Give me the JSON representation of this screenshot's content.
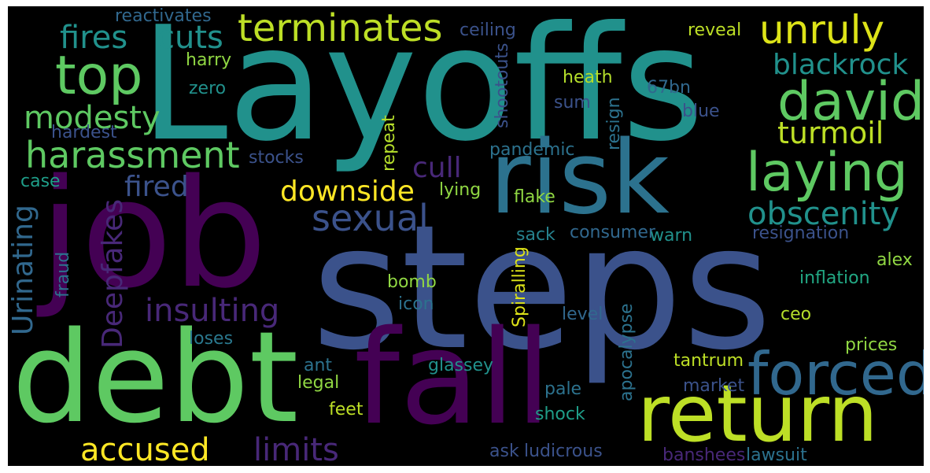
{
  "words": [
    {
      "text": "Layoffs",
      "color": "#21918c",
      "orientation": "horizontal"
    },
    {
      "text": "steps",
      "color": "#3b528b",
      "orientation": "horizontal"
    },
    {
      "text": "job",
      "color": "#440154",
      "orientation": "horizontal"
    },
    {
      "text": "debt",
      "color": "#5ec962",
      "orientation": "horizontal"
    },
    {
      "text": "fall",
      "color": "#440154",
      "orientation": "horizontal"
    },
    {
      "text": "risk",
      "color": "#2c728e",
      "orientation": "horizontal"
    },
    {
      "text": "return",
      "color": "#bddf26",
      "orientation": "horizontal"
    },
    {
      "text": "forced",
      "color": "#31688e",
      "orientation": "horizontal"
    },
    {
      "text": "top",
      "color": "#5ec962",
      "orientation": "horizontal"
    },
    {
      "text": "david",
      "color": "#5ec962",
      "orientation": "horizontal"
    },
    {
      "text": "laying",
      "color": "#5ec962",
      "orientation": "horizontal"
    },
    {
      "text": "terminates",
      "color": "#bddf26",
      "orientation": "horizontal"
    },
    {
      "text": "unruly",
      "color": "#dde318",
      "orientation": "horizontal"
    },
    {
      "text": "harassment",
      "color": "#5ec962",
      "orientation": "horizontal"
    },
    {
      "text": "sexual",
      "color": "#3b528b",
      "orientation": "horizontal"
    },
    {
      "text": "obscenity",
      "color": "#21918c",
      "orientation": "horizontal"
    },
    {
      "text": "fires",
      "color": "#21918c",
      "orientation": "horizontal"
    },
    {
      "text": "cuts",
      "color": "#21918c",
      "orientation": "horizontal"
    },
    {
      "text": "blackrock",
      "color": "#21918c",
      "orientation": "horizontal"
    },
    {
      "text": "modesty",
      "color": "#5ec962",
      "orientation": "horizontal"
    },
    {
      "text": "turmoil",
      "color": "#bddf26",
      "orientation": "horizontal"
    },
    {
      "text": "downside",
      "color": "#fde725",
      "orientation": "horizontal"
    },
    {
      "text": "insulting",
      "color": "#482878",
      "orientation": "horizontal"
    },
    {
      "text": "accused",
      "color": "#fde725",
      "orientation": "horizontal"
    },
    {
      "text": "limits",
      "color": "#482878",
      "orientation": "horizontal"
    },
    {
      "text": "cull",
      "color": "#482878",
      "orientation": "horizontal"
    },
    {
      "text": "fired",
      "color": "#3b528b",
      "orientation": "horizontal"
    },
    {
      "text": "Urinating",
      "color": "#31688e",
      "orientation": "vertical"
    },
    {
      "text": "Deepfakes",
      "color": "#482878",
      "orientation": "vertical"
    },
    {
      "text": "reactivates",
      "color": "#31688e",
      "orientation": "horizontal"
    },
    {
      "text": "ceiling",
      "color": "#3b528b",
      "orientation": "horizontal"
    },
    {
      "text": "reveal",
      "color": "#bddf26",
      "orientation": "horizontal"
    },
    {
      "text": "harry",
      "color": "#90d743",
      "orientation": "horizontal"
    },
    {
      "text": "zero",
      "color": "#21918c",
      "orientation": "horizontal"
    },
    {
      "text": "heath",
      "color": "#b5de2b",
      "orientation": "horizontal"
    },
    {
      "text": "67bn",
      "color": "#31688e",
      "orientation": "horizontal"
    },
    {
      "text": "sum",
      "color": "#3b528b",
      "orientation": "horizontal"
    },
    {
      "text": "blue",
      "color": "#3b528b",
      "orientation": "horizontal"
    },
    {
      "text": "hardest",
      "color": "#3b528b",
      "orientation": "horizontal"
    },
    {
      "text": "stocks",
      "color": "#3b528b",
      "orientation": "horizontal"
    },
    {
      "text": "case",
      "color": "#1f9e89",
      "orientation": "horizontal"
    },
    {
      "text": "pandemic",
      "color": "#2c728e",
      "orientation": "horizontal"
    },
    {
      "text": "lying",
      "color": "#90d743",
      "orientation": "horizontal"
    },
    {
      "text": "flake",
      "color": "#90d743",
      "orientation": "horizontal"
    },
    {
      "text": "sack",
      "color": "#26828e",
      "orientation": "horizontal"
    },
    {
      "text": "consumer",
      "color": "#31688e",
      "orientation": "horizontal"
    },
    {
      "text": "warn",
      "color": "#21918c",
      "orientation": "horizontal"
    },
    {
      "text": "resignation",
      "color": "#3b528b",
      "orientation": "horizontal"
    },
    {
      "text": "alex",
      "color": "#90d743",
      "orientation": "horizontal"
    },
    {
      "text": "inflation",
      "color": "#22a884",
      "orientation": "horizontal"
    },
    {
      "text": "bomb",
      "color": "#90d743",
      "orientation": "horizontal"
    },
    {
      "text": "icon",
      "color": "#2c728e",
      "orientation": "horizontal"
    },
    {
      "text": "level",
      "color": "#31688e",
      "orientation": "horizontal"
    },
    {
      "text": "ceo",
      "color": "#b5de2b",
      "orientation": "horizontal"
    },
    {
      "text": "loses",
      "color": "#2a788e",
      "orientation": "horizontal"
    },
    {
      "text": "prices",
      "color": "#90d743",
      "orientation": "horizontal"
    },
    {
      "text": "ant",
      "color": "#2c728e",
      "orientation": "horizontal"
    },
    {
      "text": "glassey",
      "color": "#21918c",
      "orientation": "horizontal"
    },
    {
      "text": "tantrum",
      "color": "#bddf26",
      "orientation": "horizontal"
    },
    {
      "text": "legal",
      "color": "#90d743",
      "orientation": "horizontal"
    },
    {
      "text": "market",
      "color": "#3b528b",
      "orientation": "horizontal"
    },
    {
      "text": "pale",
      "color": "#2c728e",
      "orientation": "horizontal"
    },
    {
      "text": "feet",
      "color": "#bddf26",
      "orientation": "horizontal"
    },
    {
      "text": "shock",
      "color": "#1f9e89",
      "orientation": "horizontal"
    },
    {
      "text": "ask",
      "color": "#3b528b",
      "orientation": "horizontal"
    },
    {
      "text": "ludicrous",
      "color": "#3b528b",
      "orientation": "horizontal"
    },
    {
      "text": "banshees",
      "color": "#482878",
      "orientation": "horizontal"
    },
    {
      "text": "lawsuit",
      "color": "#2c728e",
      "orientation": "horizontal"
    },
    {
      "text": "shootouts",
      "color": "#3b528b",
      "orientation": "vertical"
    },
    {
      "text": "repeat",
      "color": "#b5de2b",
      "orientation": "vertical"
    },
    {
      "text": "resign",
      "color": "#2c728e",
      "orientation": "vertical"
    },
    {
      "text": "Spiralling",
      "color": "#dde318",
      "orientation": "vertical"
    },
    {
      "text": "apocalypse",
      "color": "#2c728e",
      "orientation": "vertical"
    },
    {
      "text": "fraud",
      "color": "#2c728e",
      "orientation": "vertical"
    }
  ]
}
